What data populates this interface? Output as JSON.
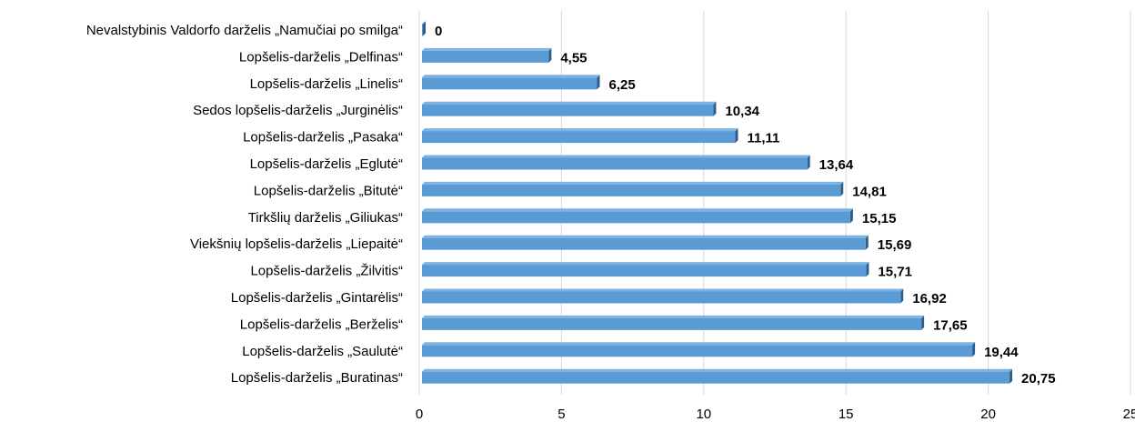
{
  "chart_data": {
    "type": "bar",
    "orientation": "horizontal",
    "categories": [
      "Nevalstybinis Valdorfo darželis „Namučiai po smilga“",
      "Lopšelis-darželis „Delfinas“",
      "Lopšelis-darželis „Linelis“",
      "Sedos lopšelis-darželis „Jurginėlis“",
      "Lopšelis-darželis „Pasaka“",
      "Lopšelis-darželis „Eglutė“",
      "Lopšelis-darželis „Bitutė“",
      "Tirkšlių darželis „Giliukas“",
      "Viekšnių lopšelis-darželis „Liepaitė“",
      "Lopšelis-darželis „Žilvitis“",
      "Lopšelis-darželis „Gintarėlis“",
      "Lopšelis-darželis „Berželis“",
      "Lopšelis-darželis „Saulutė“",
      "Lopšelis-darželis „Buratinas“"
    ],
    "values": [
      0,
      4.55,
      6.25,
      10.34,
      11.11,
      13.64,
      14.81,
      15.15,
      15.69,
      15.71,
      16.92,
      17.65,
      19.44,
      20.75
    ],
    "value_labels": [
      "0",
      "4,55",
      "6,25",
      "10,34",
      "11,11",
      "13,64",
      "14,81",
      "15,15",
      "15,69",
      "15,71",
      "16,92",
      "17,65",
      "19,44",
      "20,75"
    ],
    "xlim": [
      0,
      25
    ],
    "xticks": [
      0,
      5,
      10,
      15,
      20,
      25
    ],
    "xtick_labels": [
      "0",
      "5",
      "10",
      "15",
      "20",
      "25"
    ],
    "grid": "vertical",
    "title": "",
    "xlabel": "",
    "ylabel": "",
    "colors": {
      "bar": "#5B9BD5",
      "bar_shadow": "#2E5E8C",
      "grid": "#D9D9D9"
    }
  }
}
